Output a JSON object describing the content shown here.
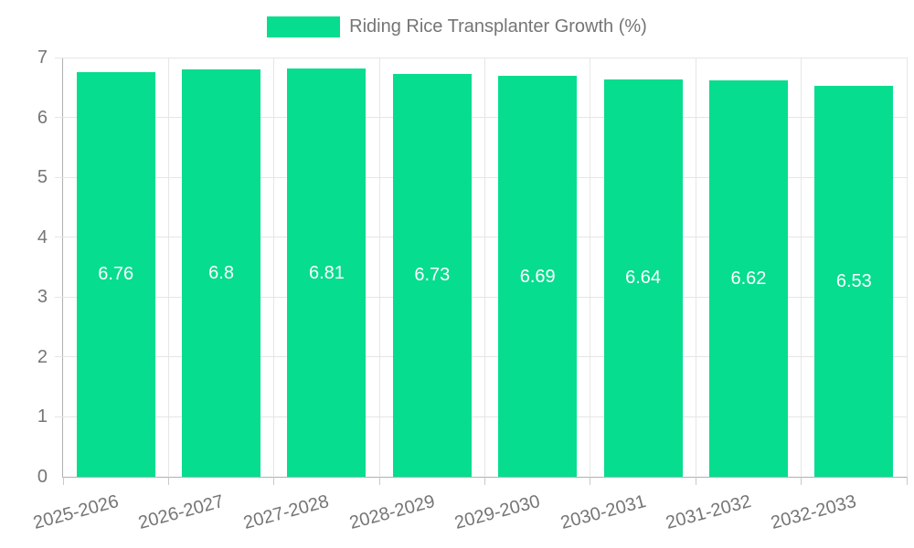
{
  "chart_data": {
    "type": "bar",
    "title": "Riding Rice Transplanter Growth (%)",
    "legend": {
      "label": "Riding Rice Transplanter Growth (%)",
      "position": "top"
    },
    "categories": [
      "2025-2026",
      "2026-2027",
      "2027-2028",
      "2028-2029",
      "2029-2030",
      "2030-2031",
      "2031-2032",
      "2032-2033"
    ],
    "series": [
      {
        "name": "Riding Rice Transplanter Growth (%)",
        "values": [
          6.76,
          6.8,
          6.81,
          6.73,
          6.69,
          6.64,
          6.62,
          6.53
        ],
        "data_labels": [
          "6.76",
          "6.8",
          "6.81",
          "6.73",
          "6.69",
          "6.64",
          "6.62",
          "6.53"
        ]
      }
    ],
    "xlabel": "",
    "ylabel": "",
    "ylim": [
      0,
      7
    ],
    "yticks": [
      0,
      1,
      2,
      3,
      4,
      5,
      6,
      7
    ],
    "grid": true,
    "colors": {
      "bar": "#06DD8E",
      "bar_label_text": "#ffffff",
      "axis_text": "#757575",
      "grid_line": "#e6e6e6",
      "axis_line": "#b0b0b0",
      "background": "#ffffff"
    }
  }
}
